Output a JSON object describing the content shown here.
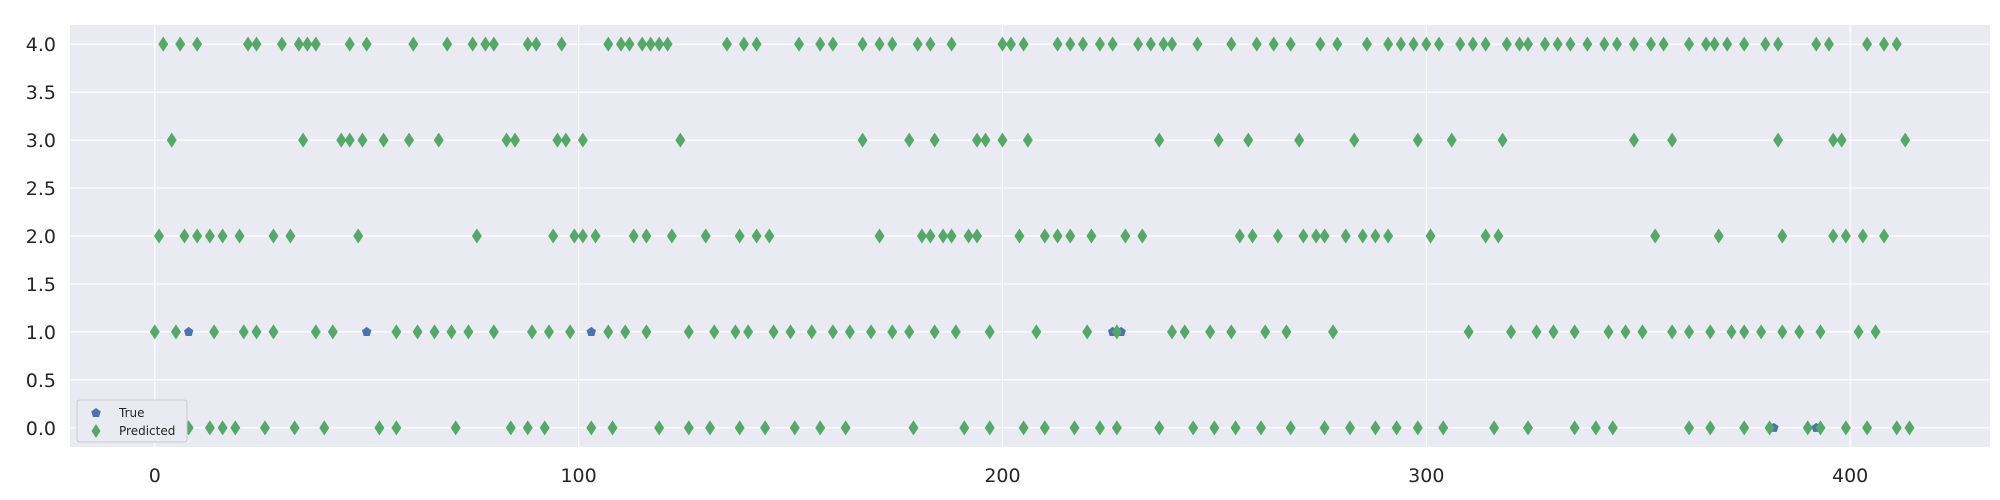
{
  "chart_data": {
    "type": "scatter",
    "title": "",
    "xlabel": "",
    "ylabel": "",
    "xlim": [
      -20,
      433
    ],
    "ylim": [
      -0.2,
      4.2
    ],
    "grid": true,
    "legend_position": "lower-left",
    "x_ticks": [
      0,
      100,
      200,
      300,
      400
    ],
    "y_ticks": [
      0.0,
      0.5,
      1.0,
      1.5,
      2.0,
      2.5,
      3.0,
      3.5,
      4.0
    ],
    "x_tick_labels": [
      "0",
      "100",
      "200",
      "300",
      "400"
    ],
    "y_tick_labels": [
      "0.0",
      "0.5",
      "1.0",
      "1.5",
      "2.0",
      "2.5",
      "3.0",
      "3.5",
      "4.0"
    ],
    "series": [
      {
        "name": "True",
        "marker": "pentagon",
        "color": "#4c72b0",
        "points": [
          [
            8,
            1.0
          ],
          [
            50,
            1.0
          ],
          [
            103,
            1.0
          ],
          [
            226,
            1.0
          ],
          [
            228,
            1.0
          ],
          [
            382,
            0.0
          ],
          [
            392,
            0.0
          ]
        ]
      },
      {
        "name": "Predicted",
        "marker": "diamond",
        "color": "#55a868",
        "points": [
          [
            2,
            4
          ],
          [
            6,
            4
          ],
          [
            10,
            4
          ],
          [
            22,
            4
          ],
          [
            24,
            4
          ],
          [
            30,
            4
          ],
          [
            34,
            4
          ],
          [
            36,
            4
          ],
          [
            38,
            4
          ],
          [
            46,
            4
          ],
          [
            50,
            4
          ],
          [
            61,
            4
          ],
          [
            69,
            4
          ],
          [
            75,
            4
          ],
          [
            78,
            4
          ],
          [
            80,
            4
          ],
          [
            88,
            4
          ],
          [
            90,
            4
          ],
          [
            96,
            4
          ],
          [
            107,
            4
          ],
          [
            110,
            4
          ],
          [
            112,
            4
          ],
          [
            115,
            4
          ],
          [
            117,
            4
          ],
          [
            119,
            4
          ],
          [
            121,
            4
          ],
          [
            135,
            4
          ],
          [
            139,
            4
          ],
          [
            142,
            4
          ],
          [
            152,
            4
          ],
          [
            157,
            4
          ],
          [
            160,
            4
          ],
          [
            167,
            4
          ],
          [
            171,
            4
          ],
          [
            174,
            4
          ],
          [
            180,
            4
          ],
          [
            183,
            4
          ],
          [
            188,
            4
          ],
          [
            200,
            4
          ],
          [
            202,
            4
          ],
          [
            205,
            4
          ],
          [
            213,
            4
          ],
          [
            216,
            4
          ],
          [
            219,
            4
          ],
          [
            223,
            4
          ],
          [
            226,
            4
          ],
          [
            232,
            4
          ],
          [
            235,
            4
          ],
          [
            238,
            4
          ],
          [
            240,
            4
          ],
          [
            246,
            4
          ],
          [
            254,
            4
          ],
          [
            260,
            4
          ],
          [
            264,
            4
          ],
          [
            268,
            4
          ],
          [
            275,
            4
          ],
          [
            279,
            4
          ],
          [
            286,
            4
          ],
          [
            291,
            4
          ],
          [
            294,
            4
          ],
          [
            297,
            4
          ],
          [
            300,
            4
          ],
          [
            303,
            4
          ],
          [
            308,
            4
          ],
          [
            311,
            4
          ],
          [
            314,
            4
          ],
          [
            319,
            4
          ],
          [
            322,
            4
          ],
          [
            324,
            4
          ],
          [
            328,
            4
          ],
          [
            331,
            4
          ],
          [
            334,
            4
          ],
          [
            338,
            4
          ],
          [
            342,
            4
          ],
          [
            345,
            4
          ],
          [
            349,
            4
          ],
          [
            353,
            4
          ],
          [
            356,
            4
          ],
          [
            362,
            4
          ],
          [
            366,
            4
          ],
          [
            368,
            4
          ],
          [
            371,
            4
          ],
          [
            375,
            4
          ],
          [
            380,
            4
          ],
          [
            383,
            4
          ],
          [
            392,
            4
          ],
          [
            395,
            4
          ],
          [
            404,
            4
          ],
          [
            408,
            4
          ],
          [
            411,
            4
          ],
          [
            4,
            3
          ],
          [
            35,
            3
          ],
          [
            44,
            3
          ],
          [
            46,
            3
          ],
          [
            49,
            3
          ],
          [
            54,
            3
          ],
          [
            60,
            3
          ],
          [
            67,
            3
          ],
          [
            83,
            3
          ],
          [
            85,
            3
          ],
          [
            95,
            3
          ],
          [
            97,
            3
          ],
          [
            101,
            3
          ],
          [
            124,
            3
          ],
          [
            167,
            3
          ],
          [
            178,
            3
          ],
          [
            184,
            3
          ],
          [
            194,
            3
          ],
          [
            196,
            3
          ],
          [
            200,
            3
          ],
          [
            206,
            3
          ],
          [
            237,
            3
          ],
          [
            251,
            3
          ],
          [
            258,
            3
          ],
          [
            270,
            3
          ],
          [
            283,
            3
          ],
          [
            298,
            3
          ],
          [
            306,
            3
          ],
          [
            318,
            3
          ],
          [
            349,
            3
          ],
          [
            358,
            3
          ],
          [
            383,
            3
          ],
          [
            396,
            3
          ],
          [
            398,
            3
          ],
          [
            413,
            3
          ],
          [
            1,
            2
          ],
          [
            7,
            2
          ],
          [
            10,
            2
          ],
          [
            13,
            2
          ],
          [
            16,
            2
          ],
          [
            20,
            2
          ],
          [
            28,
            2
          ],
          [
            32,
            2
          ],
          [
            48,
            2
          ],
          [
            76,
            2
          ],
          [
            94,
            2
          ],
          [
            99,
            2
          ],
          [
            101,
            2
          ],
          [
            104,
            2
          ],
          [
            113,
            2
          ],
          [
            116,
            2
          ],
          [
            122,
            2
          ],
          [
            130,
            2
          ],
          [
            138,
            2
          ],
          [
            142,
            2
          ],
          [
            145,
            2
          ],
          [
            171,
            2
          ],
          [
            181,
            2
          ],
          [
            183,
            2
          ],
          [
            186,
            2
          ],
          [
            188,
            2
          ],
          [
            192,
            2
          ],
          [
            194,
            2
          ],
          [
            204,
            2
          ],
          [
            210,
            2
          ],
          [
            213,
            2
          ],
          [
            216,
            2
          ],
          [
            221,
            2
          ],
          [
            229,
            2
          ],
          [
            233,
            2
          ],
          [
            256,
            2
          ],
          [
            259,
            2
          ],
          [
            265,
            2
          ],
          [
            271,
            2
          ],
          [
            274,
            2
          ],
          [
            276,
            2
          ],
          [
            281,
            2
          ],
          [
            285,
            2
          ],
          [
            288,
            2
          ],
          [
            291,
            2
          ],
          [
            301,
            2
          ],
          [
            314,
            2
          ],
          [
            317,
            2
          ],
          [
            354,
            2
          ],
          [
            369,
            2
          ],
          [
            384,
            2
          ],
          [
            396,
            2
          ],
          [
            399,
            2
          ],
          [
            403,
            2
          ],
          [
            408,
            2
          ],
          [
            0,
            1
          ],
          [
            5,
            1
          ],
          [
            14,
            1
          ],
          [
            21,
            1
          ],
          [
            24,
            1
          ],
          [
            28,
            1
          ],
          [
            38,
            1
          ],
          [
            42,
            1
          ],
          [
            57,
            1
          ],
          [
            62,
            1
          ],
          [
            66,
            1
          ],
          [
            70,
            1
          ],
          [
            74,
            1
          ],
          [
            80,
            1
          ],
          [
            89,
            1
          ],
          [
            93,
            1
          ],
          [
            98,
            1
          ],
          [
            107,
            1
          ],
          [
            111,
            1
          ],
          [
            116,
            1
          ],
          [
            126,
            1
          ],
          [
            132,
            1
          ],
          [
            137,
            1
          ],
          [
            140,
            1
          ],
          [
            146,
            1
          ],
          [
            150,
            1
          ],
          [
            155,
            1
          ],
          [
            160,
            1
          ],
          [
            164,
            1
          ],
          [
            169,
            1
          ],
          [
            174,
            1
          ],
          [
            178,
            1
          ],
          [
            184,
            1
          ],
          [
            189,
            1
          ],
          [
            197,
            1
          ],
          [
            208,
            1
          ],
          [
            220,
            1
          ],
          [
            227,
            1
          ],
          [
            240,
            1
          ],
          [
            243,
            1
          ],
          [
            249,
            1
          ],
          [
            254,
            1
          ],
          [
            262,
            1
          ],
          [
            267,
            1
          ],
          [
            278,
            1
          ],
          [
            310,
            1
          ],
          [
            320,
            1
          ],
          [
            326,
            1
          ],
          [
            330,
            1
          ],
          [
            335,
            1
          ],
          [
            343,
            1
          ],
          [
            347,
            1
          ],
          [
            351,
            1
          ],
          [
            358,
            1
          ],
          [
            362,
            1
          ],
          [
            367,
            1
          ],
          [
            372,
            1
          ],
          [
            375,
            1
          ],
          [
            379,
            1
          ],
          [
            384,
            1
          ],
          [
            388,
            1
          ],
          [
            393,
            1
          ],
          [
            402,
            1
          ],
          [
            406,
            1
          ],
          [
            8,
            0
          ],
          [
            13,
            0
          ],
          [
            16,
            0
          ],
          [
            19,
            0
          ],
          [
            26,
            0
          ],
          [
            33,
            0
          ],
          [
            40,
            0
          ],
          [
            53,
            0
          ],
          [
            57,
            0
          ],
          [
            71,
            0
          ],
          [
            84,
            0
          ],
          [
            88,
            0
          ],
          [
            92,
            0
          ],
          [
            103,
            0
          ],
          [
            108,
            0
          ],
          [
            119,
            0
          ],
          [
            126,
            0
          ],
          [
            131,
            0
          ],
          [
            138,
            0
          ],
          [
            144,
            0
          ],
          [
            151,
            0
          ],
          [
            157,
            0
          ],
          [
            163,
            0
          ],
          [
            179,
            0
          ],
          [
            191,
            0
          ],
          [
            197,
            0
          ],
          [
            205,
            0
          ],
          [
            210,
            0
          ],
          [
            217,
            0
          ],
          [
            223,
            0
          ],
          [
            227,
            0
          ],
          [
            237,
            0
          ],
          [
            245,
            0
          ],
          [
            250,
            0
          ],
          [
            255,
            0
          ],
          [
            261,
            0
          ],
          [
            268,
            0
          ],
          [
            276,
            0
          ],
          [
            282,
            0
          ],
          [
            288,
            0
          ],
          [
            293,
            0
          ],
          [
            298,
            0
          ],
          [
            304,
            0
          ],
          [
            316,
            0
          ],
          [
            324,
            0
          ],
          [
            335,
            0
          ],
          [
            340,
            0
          ],
          [
            344,
            0
          ],
          [
            362,
            0
          ],
          [
            367,
            0
          ],
          [
            375,
            0
          ],
          [
            381,
            0
          ],
          [
            390,
            0
          ],
          [
            393,
            0
          ],
          [
            399,
            0
          ],
          [
            404,
            0
          ],
          [
            411,
            0
          ],
          [
            414,
            0
          ]
        ]
      }
    ]
  }
}
